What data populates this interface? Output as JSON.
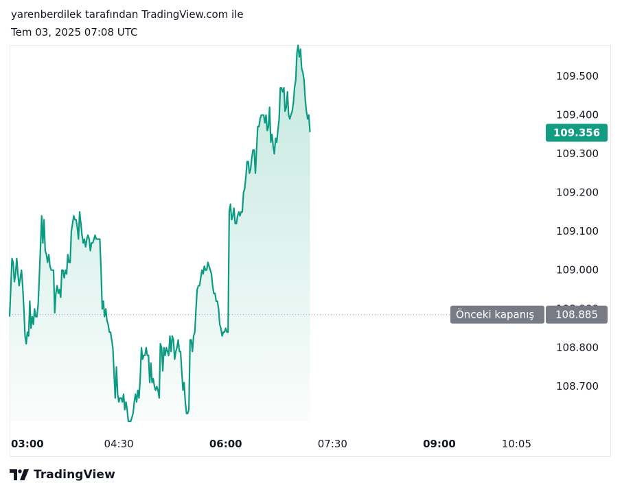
{
  "header": {
    "author_line": "yarenberdilek tarafından TradingView.com ile",
    "date_line": "Tem 03, 2025 07:08 UTC"
  },
  "footer": {
    "brand": "TradingView"
  },
  "colors": {
    "line": "#0c9b82",
    "area_top": "#bfe6dc",
    "last_price_badge": "#129c82",
    "prev_close_badge": "#787b86",
    "prev_close_line": "#9598a1"
  },
  "chart_data": {
    "type": "area",
    "x_ticks": [
      "03:00",
      "04:30",
      "06:00",
      "07:30",
      "09:00",
      "10:05"
    ],
    "y_ticks": [
      "108.700",
      "108.800",
      "108.900",
      "109.000",
      "109.100",
      "109.200",
      "109.300",
      "109.400",
      "109.500"
    ],
    "ylim": [
      108.61,
      109.58
    ],
    "xlim": [
      "02:58",
      "10:25"
    ],
    "last_price": {
      "label": "109.356",
      "value": 109.356
    },
    "previous_close": {
      "label": "Önceki kapanış",
      "value_label": "108.885",
      "value": 108.885
    },
    "grid": false,
    "series": [
      {
        "values": [
          [
            "02:58",
            108.88
          ],
          [
            "03:00",
            109.03
          ],
          [
            "03:01",
            109.02
          ],
          [
            "03:02",
            108.97
          ],
          [
            "03:03",
            108.99
          ],
          [
            "03:04",
            109.03
          ],
          [
            "03:05",
            108.99
          ],
          [
            "03:06",
            108.96
          ],
          [
            "03:07",
            108.98
          ],
          [
            "03:08",
            109.0
          ],
          [
            "03:09",
            108.96
          ],
          [
            "03:10",
            108.9
          ],
          [
            "03:11",
            108.83
          ],
          [
            "03:12",
            108.81
          ],
          [
            "03:13",
            108.84
          ],
          [
            "03:14",
            108.83
          ],
          [
            "03:15",
            108.92
          ],
          [
            "03:16",
            108.85
          ],
          [
            "03:17",
            108.88
          ],
          [
            "03:18",
            108.86
          ],
          [
            "03:19",
            108.9
          ],
          [
            "03:20",
            108.88
          ],
          [
            "03:21",
            108.88
          ],
          [
            "03:22",
            108.91
          ],
          [
            "03:23",
            108.98
          ],
          [
            "03:24",
            109.06
          ],
          [
            "03:25",
            109.14
          ],
          [
            "03:26",
            109.07
          ],
          [
            "03:27",
            109.13
          ],
          [
            "03:28",
            109.05
          ],
          [
            "03:29",
            109.04
          ],
          [
            "03:30",
            109.02
          ],
          [
            "03:31",
            109.04
          ],
          [
            "03:32",
            109.01
          ],
          [
            "03:33",
            109.0
          ],
          [
            "03:34",
            109.0
          ],
          [
            "03:35",
            109.0
          ],
          [
            "03:36",
            108.89
          ],
          [
            "03:37",
            108.94
          ],
          [
            "03:38",
            108.96
          ],
          [
            "03:39",
            108.94
          ],
          [
            "03:40",
            108.95
          ],
          [
            "03:41",
            108.93
          ],
          [
            "03:42",
            109.0
          ],
          [
            "03:43",
            109.0
          ],
          [
            "03:44",
            108.98
          ],
          [
            "03:45",
            109.0
          ],
          [
            "03:46",
            108.99
          ],
          [
            "03:47",
            109.04
          ],
          [
            "03:48",
            109.02
          ],
          [
            "03:49",
            109.02
          ],
          [
            "03:50",
            109.1
          ],
          [
            "03:51",
            109.12
          ],
          [
            "03:52",
            109.14
          ],
          [
            "03:53",
            109.13
          ],
          [
            "03:54",
            109.13
          ],
          [
            "03:55",
            109.11
          ],
          [
            "03:56",
            109.08
          ],
          [
            "03:57",
            109.15
          ],
          [
            "03:58",
            109.12
          ],
          [
            "03:59",
            109.09
          ],
          [
            "04:00",
            109.07
          ],
          [
            "04:01",
            109.08
          ],
          [
            "04:02",
            109.06
          ],
          [
            "04:03",
            109.08
          ],
          [
            "04:04",
            109.09
          ],
          [
            "04:05",
            109.08
          ],
          [
            "04:06",
            109.05
          ],
          [
            "04:07",
            109.07
          ],
          [
            "04:08",
            109.07
          ],
          [
            "04:09",
            109.08
          ],
          [
            "04:10",
            109.09
          ],
          [
            "04:11",
            109.08
          ],
          [
            "04:12",
            109.08
          ],
          [
            "04:13",
            109.08
          ],
          [
            "04:14",
            109.08
          ],
          [
            "04:15",
            109.0
          ],
          [
            "04:16",
            108.9
          ],
          [
            "04:17",
            108.92
          ],
          [
            "04:18",
            108.88
          ],
          [
            "04:19",
            108.9
          ],
          [
            "04:20",
            108.87
          ],
          [
            "04:21",
            108.86
          ],
          [
            "04:22",
            108.84
          ],
          [
            "04:23",
            108.84
          ],
          [
            "04:24",
            108.82
          ],
          [
            "04:25",
            108.8
          ],
          [
            "04:26",
            108.73
          ],
          [
            "04:27",
            108.67
          ],
          [
            "04:28",
            108.75
          ],
          [
            "04:29",
            108.68
          ],
          [
            "04:30",
            108.66
          ],
          [
            "04:31",
            108.67
          ],
          [
            "04:32",
            108.67
          ],
          [
            "04:33",
            108.66
          ],
          [
            "04:34",
            108.68
          ],
          [
            "04:35",
            108.64
          ],
          [
            "04:36",
            108.66
          ],
          [
            "04:37",
            108.64
          ],
          [
            "04:38",
            108.61
          ],
          [
            "04:39",
            108.61
          ],
          [
            "04:40",
            108.61
          ],
          [
            "04:41",
            108.62
          ],
          [
            "04:42",
            108.63
          ],
          [
            "04:43",
            108.66
          ],
          [
            "04:44",
            108.68
          ],
          [
            "04:45",
            108.66
          ],
          [
            "04:46",
            108.69
          ],
          [
            "04:47",
            108.67
          ],
          [
            "04:48",
            108.72
          ],
          [
            "04:49",
            108.8
          ],
          [
            "04:50",
            108.77
          ],
          [
            "04:51",
            108.78
          ],
          [
            "04:52",
            108.78
          ],
          [
            "04:53",
            108.8
          ],
          [
            "04:54",
            108.78
          ],
          [
            "04:55",
            108.78
          ],
          [
            "04:56",
            108.71
          ],
          [
            "04:57",
            108.76
          ],
          [
            "04:58",
            108.71
          ],
          [
            "04:59",
            108.72
          ],
          [
            "05:00",
            108.7
          ],
          [
            "05:01",
            108.69
          ],
          [
            "05:02",
            108.7
          ],
          [
            "05:03",
            108.69
          ],
          [
            "05:04",
            108.67
          ],
          [
            "05:05",
            108.81
          ],
          [
            "05:06",
            108.8
          ],
          [
            "05:07",
            108.74
          ],
          [
            "05:08",
            108.8
          ],
          [
            "05:09",
            108.78
          ],
          [
            "05:10",
            108.8
          ],
          [
            "05:11",
            108.79
          ],
          [
            "05:12",
            108.78
          ],
          [
            "05:13",
            108.83
          ],
          [
            "05:14",
            108.79
          ],
          [
            "05:15",
            108.83
          ],
          [
            "05:16",
            108.82
          ],
          [
            "05:17",
            108.77
          ],
          [
            "05:18",
            108.79
          ],
          [
            "05:19",
            108.8
          ],
          [
            "05:20",
            108.82
          ],
          [
            "05:21",
            108.79
          ],
          [
            "05:22",
            108.79
          ],
          [
            "05:23",
            108.74
          ],
          [
            "05:24",
            108.69
          ],
          [
            "05:25",
            108.71
          ],
          [
            "05:26",
            108.66
          ],
          [
            "05:27",
            108.63
          ],
          [
            "05:28",
            108.63
          ],
          [
            "05:29",
            108.64
          ],
          [
            "05:30",
            108.82
          ],
          [
            "05:31",
            108.82
          ],
          [
            "05:32",
            108.79
          ],
          [
            "05:33",
            108.83
          ],
          [
            "05:34",
            108.84
          ],
          [
            "05:35",
            108.9
          ],
          [
            "05:36",
            108.95
          ],
          [
            "05:37",
            108.96
          ],
          [
            "05:38",
            108.96
          ],
          [
            "05:39",
            108.98
          ],
          [
            "05:40",
            109.0
          ],
          [
            "05:41",
            108.99
          ],
          [
            "05:42",
            109.01
          ],
          [
            "05:43",
            109.0
          ],
          [
            "05:44",
            109.0
          ],
          [
            "05:45",
            109.02
          ],
          [
            "05:46",
            109.01
          ],
          [
            "05:47",
            109.0
          ],
          [
            "05:48",
            108.99
          ],
          [
            "05:49",
            108.96
          ],
          [
            "05:50",
            108.94
          ],
          [
            "05:51",
            108.94
          ],
          [
            "05:52",
            108.92
          ],
          [
            "05:53",
            108.92
          ],
          [
            "05:54",
            108.9
          ],
          [
            "05:55",
            108.86
          ],
          [
            "05:56",
            108.85
          ],
          [
            "05:57",
            108.83
          ],
          [
            "05:58",
            108.84
          ],
          [
            "05:59",
            108.84
          ],
          [
            "06:00",
            108.85
          ],
          [
            "06:01",
            108.84
          ],
          [
            "06:02",
            108.84
          ],
          [
            "06:03",
            109.15
          ],
          [
            "06:04",
            109.17
          ],
          [
            "06:05",
            109.13
          ],
          [
            "06:06",
            109.14
          ],
          [
            "06:07",
            109.16
          ],
          [
            "06:08",
            109.12
          ],
          [
            "06:09",
            109.12
          ],
          [
            "06:10",
            109.14
          ],
          [
            "06:11",
            109.15
          ],
          [
            "06:12",
            109.14
          ],
          [
            "06:13",
            109.15
          ],
          [
            "06:14",
            109.15
          ],
          [
            "06:15",
            109.2
          ],
          [
            "06:16",
            109.21
          ],
          [
            "06:17",
            109.24
          ],
          [
            "06:18",
            109.28
          ],
          [
            "06:19",
            109.28
          ],
          [
            "06:20",
            109.25
          ],
          [
            "06:21",
            109.26
          ],
          [
            "06:22",
            109.29
          ],
          [
            "06:23",
            109.31
          ],
          [
            "06:24",
            109.31
          ],
          [
            "06:25",
            109.25
          ],
          [
            "06:26",
            109.31
          ],
          [
            "06:27",
            109.37
          ],
          [
            "06:28",
            109.37
          ],
          [
            "06:29",
            109.39
          ],
          [
            "06:30",
            109.4
          ],
          [
            "06:31",
            109.4
          ],
          [
            "06:32",
            109.4
          ],
          [
            "06:33",
            109.38
          ],
          [
            "06:34",
            109.4
          ],
          [
            "06:35",
            109.36
          ],
          [
            "06:36",
            109.37
          ],
          [
            "06:37",
            109.42
          ],
          [
            "06:38",
            109.33
          ],
          [
            "06:39",
            109.35
          ],
          [
            "06:40",
            109.32
          ],
          [
            "06:41",
            109.3
          ],
          [
            "06:42",
            109.34
          ],
          [
            "06:43",
            109.33
          ],
          [
            "06:44",
            109.36
          ],
          [
            "06:45",
            109.39
          ],
          [
            "06:46",
            109.47
          ],
          [
            "06:47",
            109.47
          ],
          [
            "06:48",
            109.46
          ],
          [
            "06:49",
            109.47
          ],
          [
            "06:50",
            109.41
          ],
          [
            "06:51",
            109.42
          ],
          [
            "06:52",
            109.46
          ],
          [
            "06:53",
            109.4
          ],
          [
            "06:54",
            109.39
          ],
          [
            "06:55",
            109.4
          ],
          [
            "06:56",
            109.41
          ],
          [
            "06:57",
            109.43
          ],
          [
            "06:58",
            109.47
          ],
          [
            "06:59",
            109.49
          ],
          [
            "07:00",
            109.56
          ],
          [
            "07:01",
            109.58
          ],
          [
            "07:02",
            109.55
          ],
          [
            "07:03",
            109.57
          ],
          [
            "07:04",
            109.52
          ],
          [
            "07:05",
            109.51
          ],
          [
            "07:06",
            109.49
          ],
          [
            "07:07",
            109.44
          ],
          [
            "07:08",
            109.41
          ],
          [
            "07:09",
            109.39
          ],
          [
            "07:10",
            109.4
          ],
          [
            "07:11",
            109.356
          ]
        ]
      }
    ]
  }
}
